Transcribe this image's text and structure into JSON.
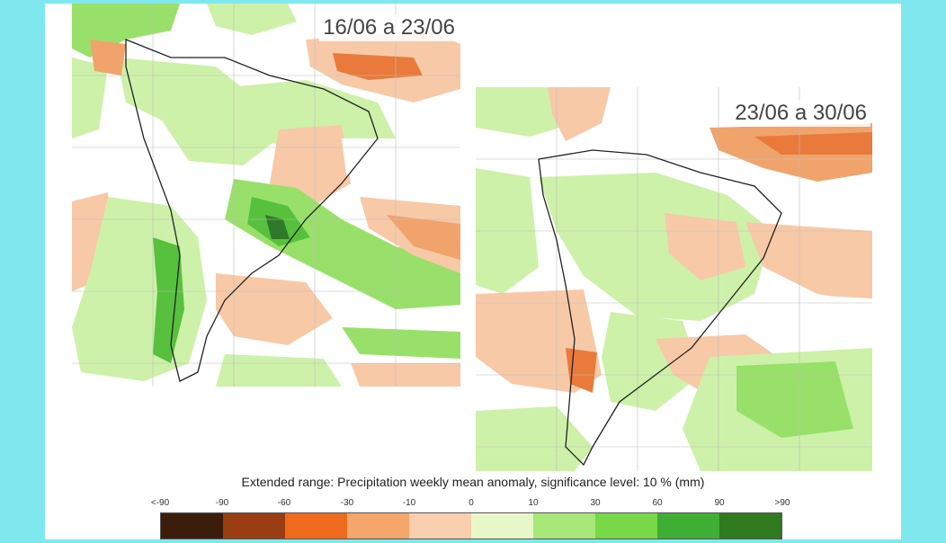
{
  "maps": [
    {
      "title": "16/06 a 23/06"
    },
    {
      "title": "23/06 a 30/06"
    }
  ],
  "caption": "Extended range: Precipitation weekly mean anomaly, significance level: 10 % (mm)",
  "legend": {
    "labels": [
      "<-90",
      "-90",
      "-60",
      "-30",
      "-10",
      "0",
      "10",
      "30",
      "60",
      "90",
      ">90"
    ],
    "colors": [
      "#3b1d0c",
      "#9a3d12",
      "#f06a1e",
      "#f5a66a",
      "#f9cfb0",
      "#e8f7c8",
      "#a8e878",
      "#78d848",
      "#3fae34",
      "#2f7a1f"
    ]
  },
  "palette": {
    "neg_light": "#f7c9a7",
    "neg_mid": "#f0a36b",
    "neg_strong": "#e97a3b",
    "pos_light": "#cdf1a8",
    "pos_mid": "#99e06a",
    "pos_strong": "#57c13e",
    "pos_dark": "#2e7a29",
    "coast": "#222222",
    "grid": "#bdbdbd"
  }
}
